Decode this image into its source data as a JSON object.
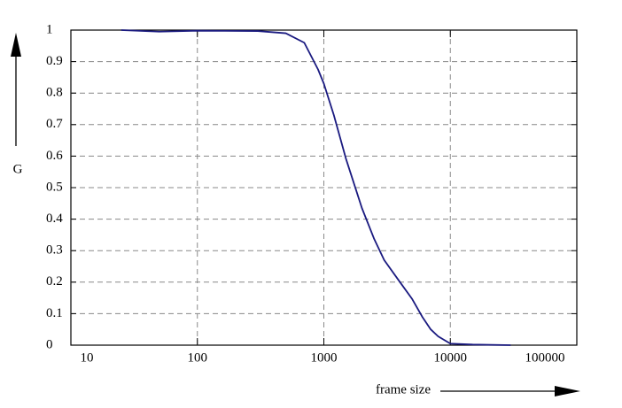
{
  "chart_data": {
    "type": "line",
    "log_x": true,
    "grid": true,
    "x_label": "frame size",
    "y_label": "G",
    "xlim": [
      10,
      100000
    ],
    "xticks": [
      10,
      100,
      1000,
      10000,
      100000
    ],
    "ylim": [
      0,
      1
    ],
    "yticks": [
      0,
      0.1,
      0.2,
      0.3,
      0.4,
      0.5,
      0.6,
      0.7,
      0.8,
      0.9,
      1
    ],
    "series": [
      {
        "color": "#1a1a80",
        "x": [
          25,
          50,
          100,
          300,
          500,
          700,
          900,
          1000,
          1200,
          1500,
          2000,
          2500,
          3000,
          4000,
          5000,
          6000,
          7000,
          8000,
          10000,
          15000,
          30000
        ],
        "values": [
          1.0,
          0.995,
          0.998,
          0.997,
          0.99,
          0.96,
          0.875,
          0.83,
          0.73,
          0.59,
          0.435,
          0.337,
          0.27,
          0.2,
          0.146,
          0.09,
          0.05,
          0.028,
          0.005,
          0.002,
          0.0
        ]
      }
    ]
  }
}
